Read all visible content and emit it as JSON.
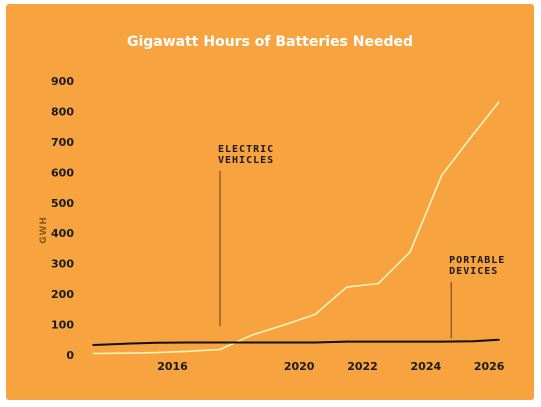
{
  "chart_data": {
    "type": "line",
    "title": "Gigawatt Hours of Batteries Needed",
    "ylabel": "GWH",
    "xlabel": "",
    "ylim": [
      0,
      900
    ],
    "xlim": [
      2013.3,
      2026.5
    ],
    "yticks": [
      "0",
      "100",
      "200",
      "300",
      "400",
      "500",
      "600",
      "700",
      "800",
      "900"
    ],
    "xticks": [
      "2016",
      "2020",
      "2022",
      "2024",
      "2026"
    ],
    "grid": false,
    "series": [
      {
        "name": "Electric Vehicles",
        "color": "#FFF3B8",
        "x": [
          2013.5,
          2014.5,
          2015.5,
          2016.5,
          2017.5,
          2018.5,
          2019.5,
          2020.5,
          2021.5,
          2022.5,
          2023.5,
          2024.5,
          2025.5,
          2026.3
        ],
        "y": [
          5,
          6,
          8,
          12,
          18,
          65,
          98,
          133,
          223,
          235,
          338,
          590,
          725,
          830
        ]
      },
      {
        "name": "Portable Devices",
        "color": "#111111",
        "x": [
          2013.5,
          2014.5,
          2015.5,
          2016.5,
          2017.5,
          2018.5,
          2019.5,
          2020.5,
          2021.5,
          2022.5,
          2023.5,
          2024.5,
          2025.5,
          2026.3
        ],
        "y": [
          33,
          37,
          40,
          41,
          41,
          41,
          41,
          41,
          44,
          44,
          44,
          44,
          45,
          50
        ]
      }
    ],
    "annotations": [
      {
        "lines": [
          "ELECTRIC",
          "VEHICLES"
        ],
        "x": 2017.5,
        "y_top": 605,
        "y_bottom": 95
      },
      {
        "lines": [
          "PORTABLE",
          "DEVICES"
        ],
        "x": 2024.8,
        "y_top": 240,
        "y_bottom": 55
      }
    ]
  }
}
